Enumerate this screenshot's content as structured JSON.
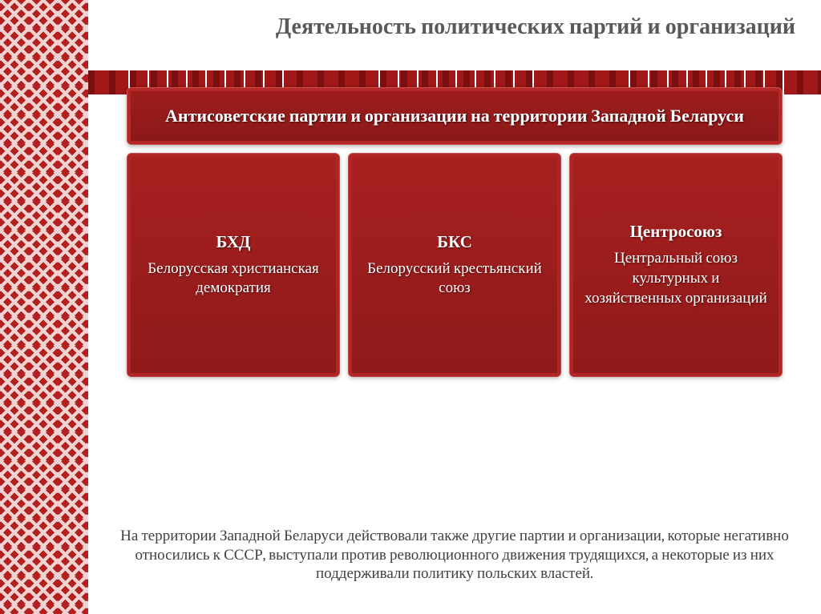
{
  "slide": {
    "title": "Деятельность политических партий и организаций",
    "header": "Антисоветские партии и организации на территории Западной Беларуси",
    "cards": [
      {
        "abbr": "БХД",
        "full": "Белорусская христианская демократия"
      },
      {
        "abbr": "БКС",
        "full": "Белорусский крестьянский союз"
      },
      {
        "abbr": "Центросоюз",
        "full": "Центральный союз культурных и хозяйственных организаций"
      }
    ],
    "footnote": "На территории Западной Беларуси действовали также другие партии и организации, которые негативно относились к СССР, выступали против революционного движения трудящихся, а некоторые из них поддержи­вали политику польских властей."
  },
  "style": {
    "title_color": "#595959",
    "title_fontsize": 28,
    "header_bg_top": "#9f1d1d",
    "header_bg_bottom": "#8b1818",
    "card_bg_top": "#a82020",
    "card_bg_bottom": "#8f1a1a",
    "text_color": "#ffffff",
    "ornament_bg": "#b32020",
    "ornament_band_bg": "#a01818",
    "footnote_color": "#404040",
    "footnote_fontsize": 19,
    "card_gap": 10,
    "card_min_height": 280,
    "border_radius": 6
  }
}
